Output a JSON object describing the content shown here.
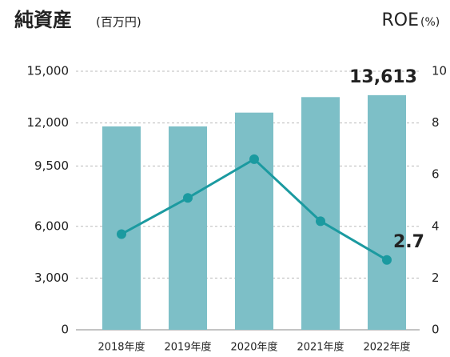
{
  "chart_data": {
    "type": "bar_line",
    "title": "純資産",
    "subtitle": "(百万円)",
    "y2_title": "ROE",
    "y2_unit": "(%)",
    "categories": [
      "2018年度",
      "2019年度",
      "2020年度",
      "2021年度",
      "2022年度"
    ],
    "series": [
      {
        "name": "純資産",
        "type": "bar",
        "color": "#7dbfc7",
        "values": [
          11800,
          11800,
          12600,
          13500,
          13613
        ],
        "value_labels": [
          null,
          null,
          null,
          null,
          "13,613"
        ]
      },
      {
        "name": "ROE",
        "type": "line",
        "axis": "y2",
        "color": "#1b9aa0",
        "values": [
          3.7,
          5.1,
          6.6,
          4.2,
          2.7
        ],
        "value_labels": [
          null,
          null,
          null,
          null,
          2.7
        ]
      }
    ],
    "ylim": [
      0,
      15000
    ],
    "yticks": [
      0,
      {
        "value": 3000,
        "label": "3,000"
      },
      {
        "value": 6000,
        "label": "6,000"
      },
      {
        "value": 9500,
        "label": "9,500"
      },
      {
        "value": 12000,
        "label": "12,000"
      },
      {
        "value": 15000,
        "label": "15,000"
      }
    ],
    "y2lim": [
      0,
      10
    ],
    "y2ticks": [
      0,
      2,
      4,
      6,
      8,
      10
    ],
    "grid": true
  }
}
